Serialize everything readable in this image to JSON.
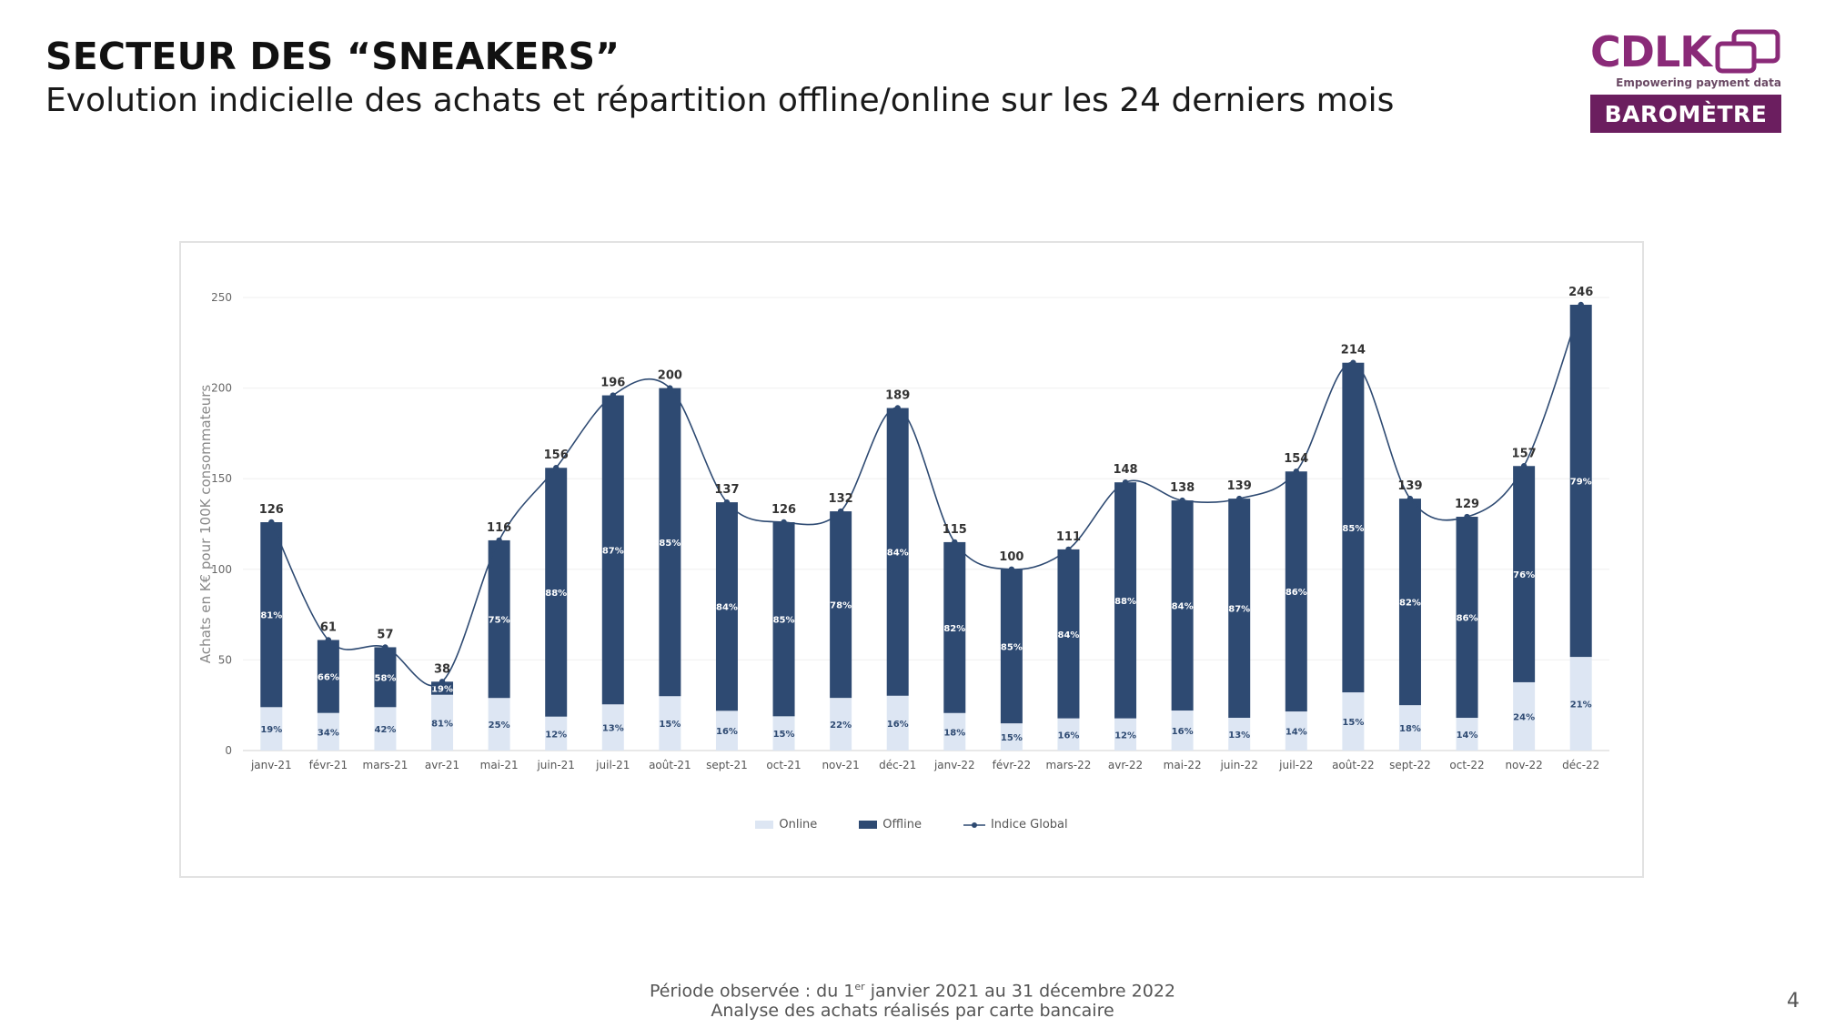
{
  "page": {
    "title": "SECTEUR DES “SNEAKERS”",
    "subtitle": "Evolution indicielle des achats et répartition offline/online sur les 24 derniers mois",
    "logo": {
      "wordmark": "CDLK",
      "tagline": "Empowering payment data",
      "badge": "BAROMÈTRE",
      "brand_color": "#6b1e5f"
    },
    "footer": {
      "line1_before": "Période observée : du 1",
      "line1_sup": "er",
      "line1_after": " janvier 2021 au 31 décembre 2022",
      "line2": "Analyse des achats réalisés par carte bancaire"
    },
    "page_number": "4"
  },
  "chart_data": {
    "type": "bar",
    "stacked": true,
    "ylabel": "Achats en K€ pour 100K consommateurs",
    "ylim": [
      0,
      250
    ],
    "yticks": [
      0,
      50,
      100,
      150,
      200,
      250
    ],
    "categories": [
      "janv-21",
      "févr-21",
      "mars-21",
      "avr-21",
      "mai-21",
      "juin-21",
      "juil-21",
      "août-21",
      "sept-21",
      "oct-21",
      "nov-21",
      "déc-21",
      "janv-22",
      "févr-22",
      "mars-22",
      "avr-22",
      "mai-22",
      "juin-22",
      "juil-22",
      "août-22",
      "sept-22",
      "oct-22",
      "nov-22",
      "déc-22"
    ],
    "totals": [
      126,
      61,
      57,
      38,
      116,
      156,
      196,
      200,
      137,
      126,
      132,
      189,
      115,
      100,
      111,
      148,
      138,
      139,
      154,
      214,
      139,
      129,
      157,
      246
    ],
    "series": [
      {
        "name": "Online",
        "color": "#dde6f3",
        "share_labels": [
          "19%",
          "34%",
          "42%",
          "81%",
          "25%",
          "12%",
          "13%",
          "15%",
          "16%",
          "15%",
          "22%",
          "16%",
          "18%",
          "15%",
          "16%",
          "12%",
          "16%",
          "13%",
          "14%",
          "15%",
          "18%",
          "14%",
          "24%",
          "21%"
        ],
        "share": [
          19,
          34,
          42,
          81,
          25,
          12,
          13,
          15,
          16,
          15,
          22,
          16,
          18,
          15,
          16,
          12,
          16,
          13,
          14,
          15,
          18,
          14,
          24,
          21
        ]
      },
      {
        "name": "Offline",
        "color": "#2e4a72",
        "share_labels": [
          "81%",
          "66%",
          "58%",
          "19%",
          "75%",
          "88%",
          "87%",
          "85%",
          "84%",
          "85%",
          "78%",
          "84%",
          "82%",
          "85%",
          "84%",
          "88%",
          "84%",
          "87%",
          "86%",
          "85%",
          "82%",
          "86%",
          "76%",
          "79%"
        ],
        "share": [
          81,
          66,
          58,
          19,
          75,
          88,
          87,
          85,
          84,
          85,
          78,
          84,
          82,
          85,
          84,
          88,
          84,
          87,
          86,
          85,
          82,
          86,
          76,
          79
        ]
      },
      {
        "name": "Indice Global",
        "type": "line",
        "color": "#2e4a72",
        "values": [
          126,
          61,
          57,
          38,
          116,
          156,
          196,
          200,
          137,
          126,
          132,
          189,
          115,
          100,
          111,
          148,
          138,
          139,
          154,
          214,
          139,
          129,
          157,
          246
        ]
      }
    ],
    "legend_position": "bottom",
    "grid": "horizontal"
  }
}
